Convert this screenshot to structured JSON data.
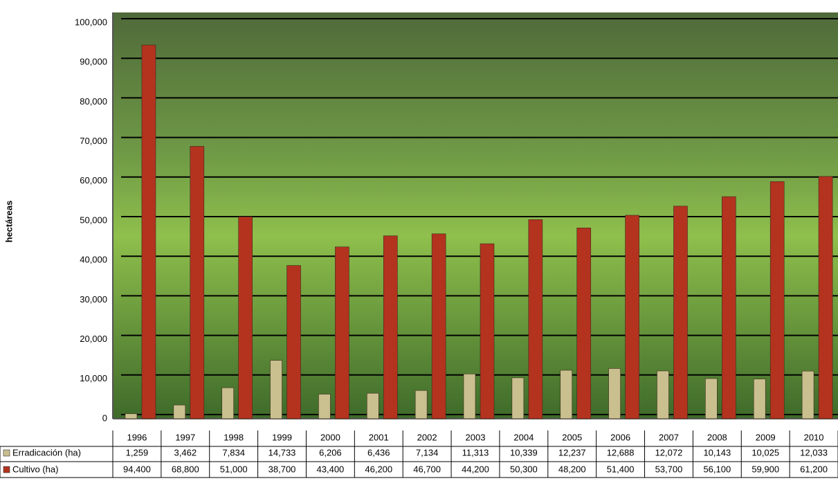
{
  "chart_data": {
    "type": "bar",
    "y_label": "hectáreas",
    "categories": [
      "1996",
      "1997",
      "1998",
      "1999",
      "2000",
      "2001",
      "2002",
      "2003",
      "2004",
      "2005",
      "2006",
      "2007",
      "2008",
      "2009",
      "2010"
    ],
    "series": [
      {
        "name": "Erradicación (ha)",
        "color": "#c9bf8f",
        "values": [
          1259,
          3462,
          7834,
          14733,
          6206,
          6436,
          7134,
          11313,
          10339,
          12237,
          12688,
          12072,
          10143,
          10025,
          12033
        ],
        "value_labels": [
          "1,259",
          "3,462",
          "7,834",
          "14,733",
          "6,206",
          "6,436",
          "7,134",
          "11,313",
          "10,339",
          "12,237",
          "12,688",
          "12,072",
          "10,143",
          "10,025",
          "12,033"
        ]
      },
      {
        "name": "Cultivo (ha)",
        "color": "#b3331f",
        "values": [
          94400,
          68800,
          51000,
          38700,
          43400,
          46200,
          46700,
          44200,
          50300,
          48200,
          51400,
          53700,
          56100,
          59900,
          61200
        ],
        "value_labels": [
          "94,400",
          "68,800",
          "51,000",
          "38,700",
          "43,400",
          "46,200",
          "46,700",
          "44,200",
          "50,300",
          "48,200",
          "51,400",
          "53,700",
          "56,100",
          "59,900",
          "61,200"
        ]
      }
    ],
    "ylim": [
      0,
      100000
    ],
    "yticks": [
      0,
      {
        "value": 10000,
        "label": "10,000"
      },
      {
        "value": 20000,
        "label": "20,000"
      },
      {
        "value": 30000,
        "label": "30,000"
      },
      {
        "value": 40000,
        "label": "40,000"
      },
      {
        "value": 50000,
        "label": "50,000"
      },
      {
        "value": 60000,
        "label": "60,000"
      },
      {
        "value": 70000,
        "label": "70,000"
      },
      {
        "value": 80000,
        "label": "80,000"
      },
      {
        "value": 90000,
        "label": "90,000"
      },
      {
        "value": 100000,
        "label": "100,000"
      }
    ],
    "grid": true
  }
}
